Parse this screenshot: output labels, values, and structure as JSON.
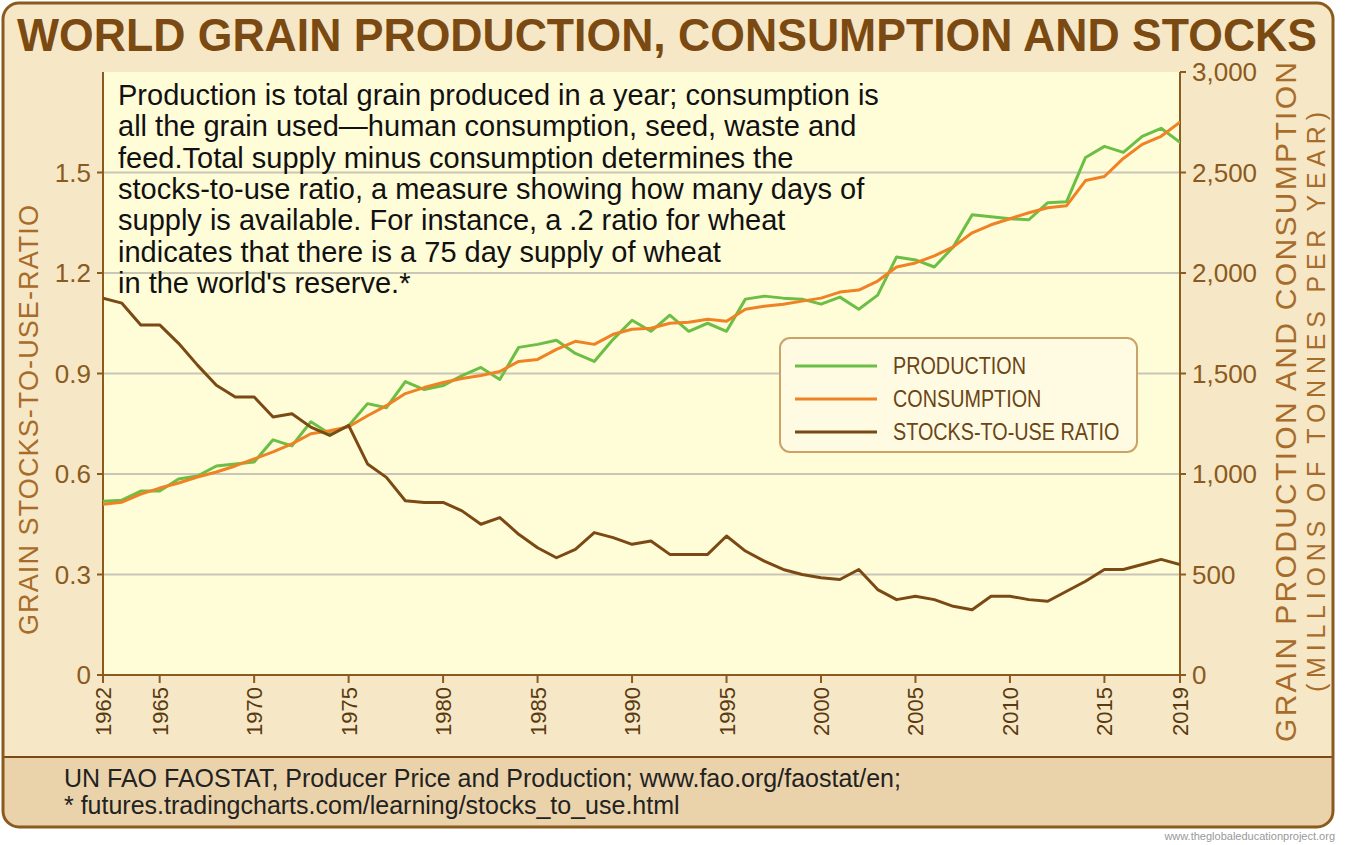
{
  "chart_data": {
    "type": "line",
    "title": "WORLD GRAIN PRODUCTION, CONSUMPTION AND STOCKS",
    "annotations": [
      "Production is total grain produced in a year; consumption is",
      "all the grain used—human consumption, seed, waste and",
      "feed.Total supply minus consumption determines the",
      "stocks-to-use ratio, a measure showing how many days of",
      "supply is available. For instance, a .2 ratio for wheat",
      "indicates that there is a 75 day supply of wheat",
      "in the world's reserve.*"
    ],
    "source": [
      "UN FAO FAOSTAT, Producer Price and Production; www.fao.org/faostat/en;",
      "* futures.tradingcharts.com/learning/stocks_to_use.html"
    ],
    "credit": "www.theglobaleducationproject.org",
    "y_label": "GRAIN STOCKS-TO-USE-RATIO",
    "y2_label": [
      "GRAIN PRODUCTION AND CONSUMPTION",
      "(MILLIONS OF TONNES PER YEAR)"
    ],
    "x": [
      1962,
      1963,
      1964,
      1965,
      1966,
      1967,
      1968,
      1969,
      1970,
      1971,
      1972,
      1973,
      1974,
      1975,
      1976,
      1977,
      1978,
      1979,
      1980,
      1981,
      1982,
      1983,
      1984,
      1985,
      1986,
      1987,
      1988,
      1989,
      1990,
      1991,
      1992,
      1993,
      1994,
      1995,
      1996,
      1997,
      1998,
      1999,
      2000,
      2001,
      2002,
      2003,
      2004,
      2005,
      2006,
      2007,
      2008,
      2009,
      2010,
      2011,
      2012,
      2013,
      2014,
      2015,
      2016,
      2017,
      2018,
      2019
    ],
    "xlim": [
      1962,
      2019
    ],
    "xticks": [
      1962,
      1965,
      1970,
      1975,
      1980,
      1985,
      1990,
      1995,
      2000,
      2005,
      2010,
      2015,
      2019
    ],
    "ylim": [
      0,
      1.8
    ],
    "yticks": [
      0,
      0.3,
      0.6,
      0.9,
      1.2,
      1.5
    ],
    "y2lim": [
      0,
      3000
    ],
    "y2ticks": [
      0,
      500,
      {
        "value": 1000,
        "label": "1,000"
      },
      {
        "value": 1500,
        "label": "1,500"
      },
      {
        "value": 2000,
        "label": "2,000"
      },
      {
        "value": 2500,
        "label": "2,500"
      },
      {
        "value": 3000,
        "label": "3,000"
      }
    ],
    "grid": true,
    "legend": "right",
    "series": [
      {
        "name": "PRODUCTION",
        "color": "#6cbf45",
        "axis": "y2",
        "values": [
          865,
          870,
          915,
          915,
          975,
          990,
          1040,
          1050,
          1060,
          1170,
          1140,
          1260,
          1200,
          1240,
          1350,
          1330,
          1460,
          1420,
          1440,
          1490,
          1530,
          1470,
          1630,
          1645,
          1665,
          1600,
          1560,
          1670,
          1765,
          1710,
          1790,
          1710,
          1750,
          1710,
          1870,
          1885,
          1875,
          1870,
          1845,
          1880,
          1820,
          1890,
          2080,
          2065,
          2030,
          2130,
          2290,
          2280,
          2270,
          2265,
          2350,
          2355,
          2575,
          2630,
          2600,
          2680,
          2720,
          2650
        ]
      },
      {
        "name": "CONSUMPTION",
        "color": "#f08226",
        "axis": "y2",
        "values": [
          850,
          860,
          900,
          930,
          955,
          985,
          1010,
          1040,
          1075,
          1110,
          1150,
          1200,
          1215,
          1235,
          1290,
          1340,
          1400,
          1430,
          1455,
          1475,
          1490,
          1510,
          1560,
          1570,
          1620,
          1660,
          1645,
          1695,
          1720,
          1725,
          1750,
          1755,
          1770,
          1760,
          1820,
          1835,
          1845,
          1860,
          1875,
          1905,
          1915,
          1960,
          2030,
          2050,
          2085,
          2130,
          2200,
          2240,
          2270,
          2300,
          2325,
          2335,
          2460,
          2480,
          2570,
          2640,
          2680,
          2750
        ]
      },
      {
        "name": "STOCKS-TO-USE RATIO",
        "color": "#7b4a14",
        "axis": "y",
        "values": [
          1.125,
          1.11,
          1.045,
          1.045,
          0.99,
          0.925,
          0.865,
          0.83,
          0.83,
          0.77,
          0.78,
          0.74,
          0.715,
          0.745,
          0.63,
          0.59,
          0.52,
          0.515,
          0.515,
          0.49,
          0.45,
          0.47,
          0.42,
          0.38,
          0.35,
          0.375,
          0.425,
          0.41,
          0.39,
          0.4,
          0.36,
          0.36,
          0.36,
          0.415,
          0.37,
          0.34,
          0.315,
          0.3,
          0.29,
          0.285,
          0.315,
          0.255,
          0.225,
          0.235,
          0.225,
          0.205,
          0.195,
          0.235,
          0.235,
          0.225,
          0.22,
          0.25,
          0.28,
          0.315,
          0.315,
          0.33,
          0.345,
          0.33
        ]
      }
    ]
  }
}
